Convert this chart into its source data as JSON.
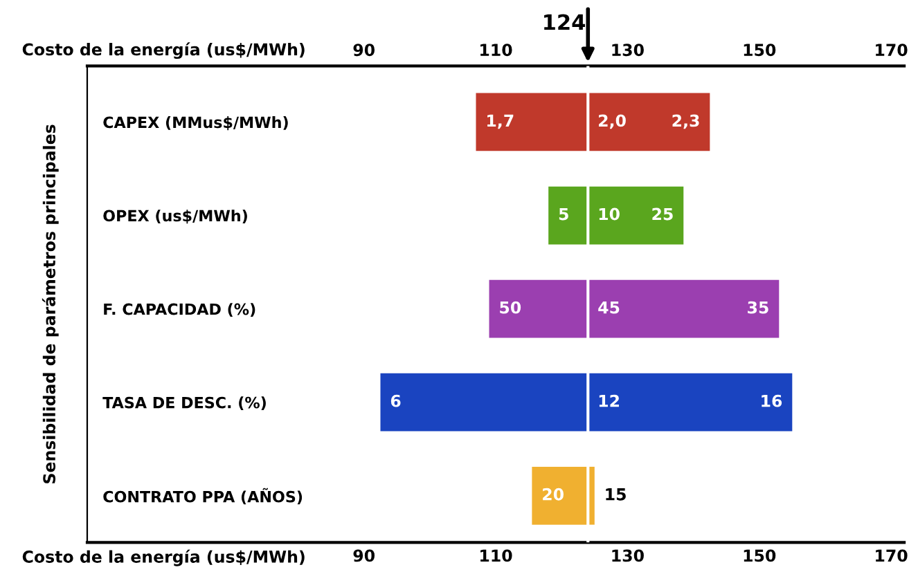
{
  "chart_data": {
    "type": "bar",
    "orientation": "horizontal",
    "xlabel": "Costo de la energía (us$/MWh)",
    "x2label": "Costo de la energía (us$/MWh)",
    "ylabel": "Sensibilidad de parámetros principales",
    "categories": [
      "CAPEX (MMus$/MWh)",
      "OPEX (us$/MWh)",
      "F. CAPACIDAD (%)",
      "TASA DE DESC. (%)",
      "CONTRATO PPA (AÑOS)"
    ],
    "series": [
      {
        "colors": [
          "#c0392b",
          "#5aa61e",
          "#9b3fb0",
          "#1a44c0",
          "#f0b030"
        ],
        "base": [
          107,
          118,
          109,
          92.5,
          115.5
        ],
        "values": [
          17,
          6,
          15,
          31.5,
          8.5
        ]
      },
      {
        "colors": [
          "#c0392b",
          "#5aa61e",
          "#9b3fb0",
          "#1a44c0",
          "#f0b030"
        ],
        "base": [
          124,
          124,
          124,
          124,
          124
        ],
        "values": [
          18.5,
          14.5,
          29,
          31,
          1
        ]
      }
    ],
    "xlim": [
      48,
      172
    ],
    "xticks": [
      90,
      110,
      130,
      150,
      170
    ],
    "x2lim": [
      48,
      172
    ],
    "x2ticks": [
      90,
      110,
      130,
      150,
      170
    ],
    "ref_lines": [
      {
        "axis": "x",
        "value": 124,
        "label": "124",
        "color": "#ffffff"
      }
    ],
    "annotations": [
      {
        "text": "1,7",
        "x": 107,
        "y": "CAPEX (MMus$/MWh)"
      },
      {
        "text": "2,0",
        "x": 124,
        "y": "CAPEX (MMus$/MWh)"
      },
      {
        "text": "2,3",
        "x": 142.5,
        "y": "CAPEX (MMus$/MWh)"
      },
      {
        "text": "5",
        "x": 118,
        "y": "OPEX (us$/MWh)"
      },
      {
        "text": "10",
        "x": 124,
        "y": "OPEX (us$/MWh)"
      },
      {
        "text": "25",
        "x": 138.5,
        "y": "OPEX (us$/MWh)"
      },
      {
        "text": "50",
        "x": 109,
        "y": "F. CAPACIDAD (%)"
      },
      {
        "text": "45",
        "x": 124,
        "y": "F. CAPACIDAD (%)"
      },
      {
        "text": "35",
        "x": 153,
        "y": "F. CAPACIDAD (%)"
      },
      {
        "text": "6",
        "x": 92.5,
        "y": "TASA DE DESC. (%)"
      },
      {
        "text": "12",
        "x": 124,
        "y": "TASA DE DESC. (%)"
      },
      {
        "text": "16",
        "x": 155,
        "y": "TASA DE DESC. (%)"
      },
      {
        "text": "20",
        "x": 115.5,
        "y": "CONTRATO PPA (AÑOS)"
      },
      {
        "text": "15",
        "x": 125,
        "y": "CONTRATO PPA (AÑOS)"
      }
    ],
    "grid": false,
    "legend": false
  }
}
